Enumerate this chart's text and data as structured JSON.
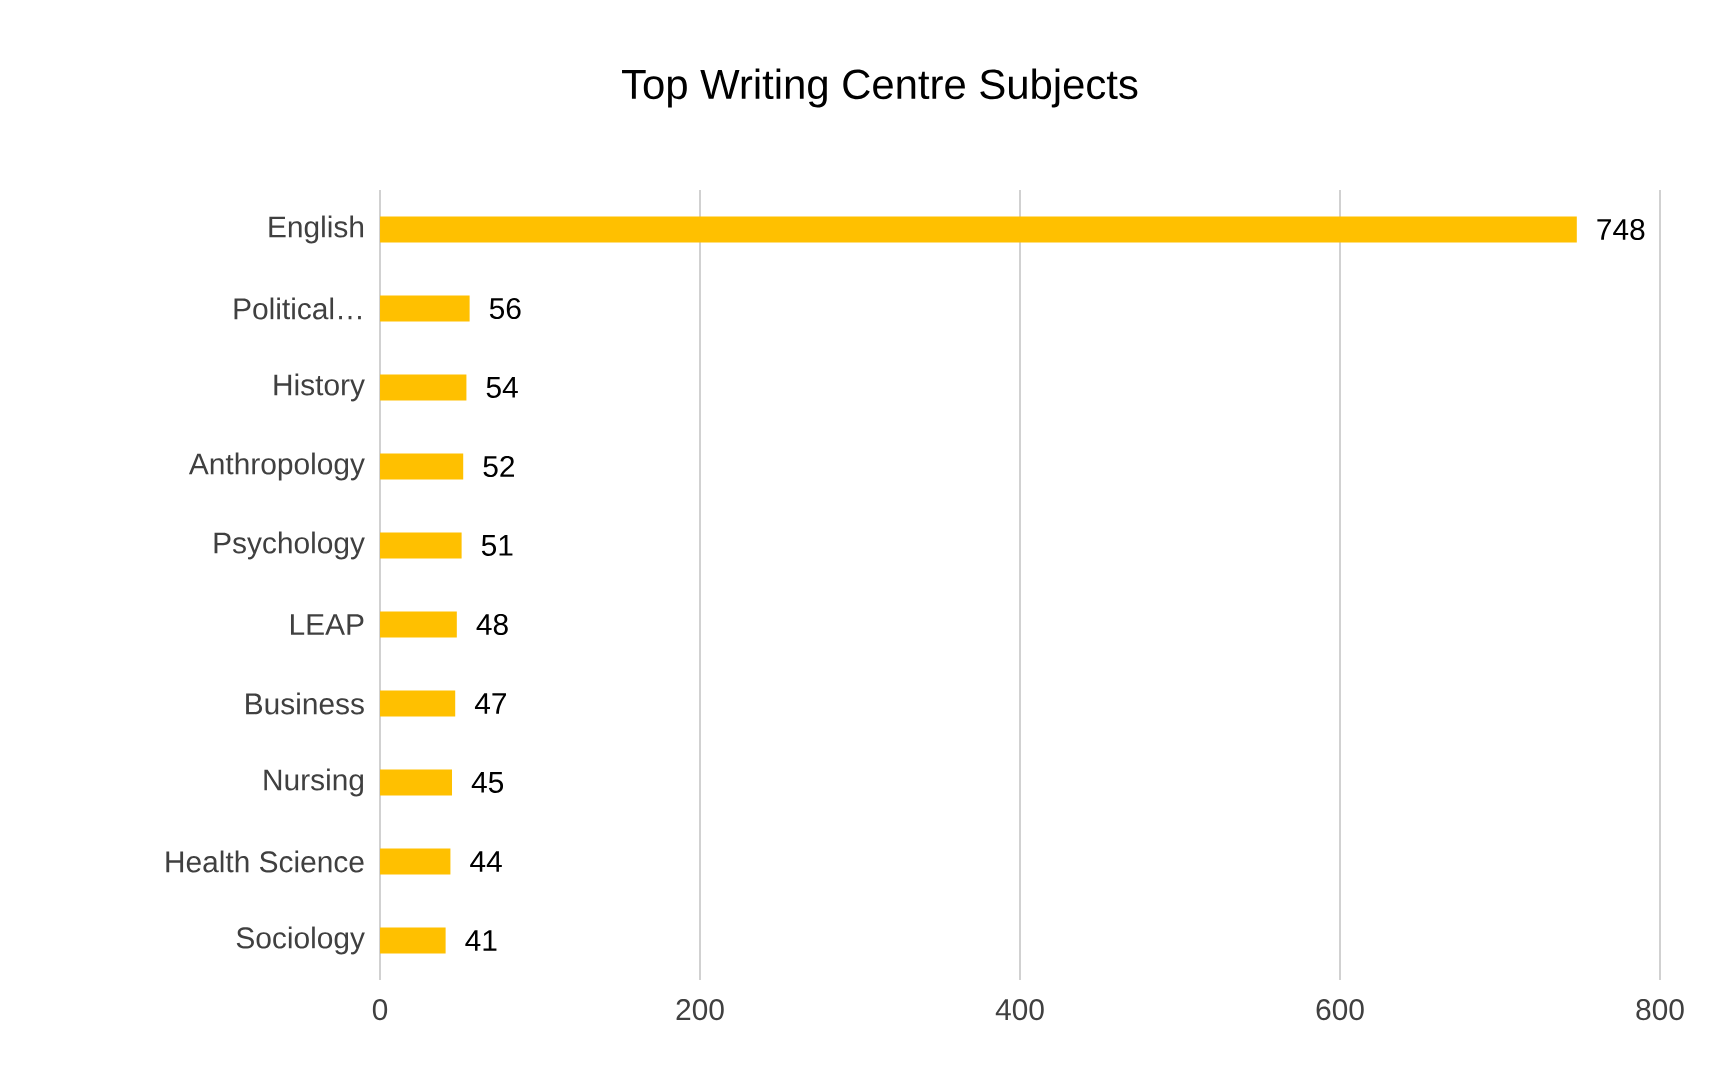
{
  "chart_data": {
    "type": "bar",
    "orientation": "horizontal",
    "title": "Top Writing Centre Subjects",
    "categories": [
      "English",
      "Political…",
      "History",
      "Anthropology",
      "Psychology",
      "LEAP",
      "Business",
      "Nursing",
      "Health Science",
      "Sociology"
    ],
    "values": [
      748,
      56,
      54,
      52,
      51,
      48,
      47,
      45,
      44,
      41
    ],
    "color": "#ffc000",
    "xlim": [
      0,
      800
    ],
    "xticks": [
      0,
      200,
      400,
      600,
      800
    ],
    "grid": "x",
    "data_labels": true
  }
}
